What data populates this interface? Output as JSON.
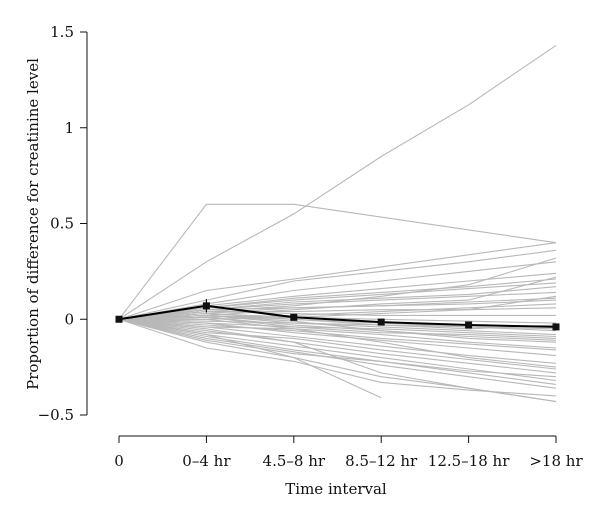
{
  "chart_data": {
    "type": "line",
    "title": "",
    "xlabel": "Time interval",
    "ylabel": "Proportion of difference for creatinine level",
    "categories": [
      "0",
      "0–4 hr",
      "4.5–8 hr",
      "8.5–12 hr",
      "12.5–18 hr",
      ">18 hr"
    ],
    "ylim": [
      -0.5,
      1.5
    ],
    "yticks": [
      -0.5,
      0,
      0.5,
      1,
      1.5
    ],
    "ytick_labels": [
      "−0.5",
      "0",
      "0.5",
      "1",
      "1.5"
    ],
    "grid": false,
    "legend": "none",
    "mean_series": {
      "values": [
        0.0,
        0.07,
        0.01,
        -0.015,
        -0.03,
        -0.04
      ],
      "error": [
        0.0,
        0.035,
        0.015,
        0.015,
        0.012,
        0.015
      ]
    },
    "individual_series": [
      {
        "values": [
          0,
          0.6,
          0.6,
          null,
          null,
          0.4
        ]
      },
      {
        "values": [
          0,
          0.3,
          0.55,
          0.85,
          1.12,
          1.43
        ]
      },
      {
        "values": [
          0,
          0.15,
          0.21,
          null,
          null,
          0.4
        ]
      },
      {
        "values": [
          0,
          0.1,
          0.2,
          0.25,
          0.3,
          0.36
        ]
      },
      {
        "values": [
          0,
          0.08,
          0.15,
          0.2,
          0.25,
          0.3
        ]
      },
      {
        "values": [
          0,
          0.07,
          0.12,
          0.16,
          0.2,
          0.24
        ]
      },
      {
        "values": [
          0,
          0.06,
          0.1,
          0.13,
          0.16,
          0.19
        ]
      },
      {
        "values": [
          0,
          0.05,
          0.08,
          0.1,
          0.12,
          0.14
        ]
      },
      {
        "values": [
          0,
          0.05,
          0.06,
          0.07,
          0.08,
          0.1
        ]
      },
      {
        "values": [
          0,
          0.04,
          0.04,
          0.05,
          0.05,
          0.06
        ]
      },
      {
        "values": [
          0,
          0.04,
          0.03,
          0.02,
          0.02,
          0.02
        ]
      },
      {
        "values": [
          0,
          0.03,
          0.01,
          0.0,
          -0.01,
          -0.02
        ]
      },
      {
        "values": [
          0,
          0.03,
          0.0,
          -0.02,
          -0.04,
          -0.05
        ]
      },
      {
        "values": [
          0,
          0.02,
          -0.02,
          -0.04,
          -0.06,
          -0.08
        ]
      },
      {
        "values": [
          0,
          0.01,
          -0.03,
          -0.06,
          -0.09,
          -0.11
        ]
      },
      {
        "values": [
          0,
          0.0,
          -0.05,
          -0.08,
          -0.12,
          -0.15
        ]
      },
      {
        "values": [
          0,
          -0.02,
          -0.07,
          -0.11,
          -0.15,
          -0.19
        ]
      },
      {
        "values": [
          0,
          -0.04,
          -0.09,
          -0.14,
          -0.19,
          -0.23
        ]
      },
      {
        "values": [
          0,
          -0.06,
          -0.12,
          -0.18,
          -0.23,
          -0.28
        ]
      },
      {
        "values": [
          0,
          -0.08,
          -0.14,
          -0.2,
          -0.26,
          -0.32
        ]
      },
      {
        "values": [
          0,
          -0.1,
          -0.17,
          -0.24,
          -0.3,
          -0.36
        ]
      },
      {
        "values": [
          0,
          -0.12,
          -0.2,
          -0.3,
          -0.36,
          -0.43
        ]
      },
      {
        "values": [
          0,
          -0.15,
          -0.22,
          -0.33,
          -0.37,
          -0.4
        ]
      },
      {
        "values": [
          0,
          -0.08,
          -0.2,
          -0.41,
          null,
          null
        ]
      },
      {
        "values": [
          0,
          -0.05,
          -0.12,
          -0.28,
          -0.36,
          -0.43
        ]
      },
      {
        "values": [
          0,
          0.02,
          0.05,
          0.08,
          0.1,
          0.22
        ]
      },
      {
        "values": [
          0,
          0.04,
          0.07,
          0.12,
          0.18,
          0.32
        ]
      },
      {
        "values": [
          0,
          -0.03,
          -0.06,
          -0.1,
          -0.13,
          -0.16
        ]
      },
      {
        "values": [
          0,
          0.01,
          0.02,
          0.04,
          0.06,
          0.08
        ]
      },
      {
        "values": [
          0,
          -0.01,
          -0.02,
          -0.03,
          -0.04,
          -0.06
        ]
      },
      {
        "values": [
          0,
          0.02,
          -0.01,
          -0.06,
          -0.1,
          -0.12
        ]
      },
      {
        "values": [
          0,
          -0.02,
          -0.04,
          -0.05,
          -0.07,
          -0.09
        ]
      },
      {
        "values": [
          0,
          0.05,
          0.09,
          0.11,
          0.13,
          0.17
        ]
      },
      {
        "values": [
          0,
          -0.07,
          -0.1,
          -0.16,
          -0.21,
          -0.26
        ]
      },
      {
        "values": [
          0,
          0.03,
          0.06,
          0.07,
          0.09,
          0.11
        ]
      },
      {
        "values": [
          0,
          -0.04,
          -0.05,
          -0.12,
          -0.2,
          -0.25
        ]
      },
      {
        "values": [
          0,
          0.06,
          0.11,
          0.14,
          0.17,
          0.21
        ]
      },
      {
        "values": [
          0,
          -0.09,
          -0.16,
          -0.22,
          -0.27,
          -0.3
        ]
      },
      {
        "values": [
          0,
          -0.11,
          -0.18,
          -0.22,
          -0.28,
          -0.34
        ]
      },
      {
        "values": [
          0,
          0.02,
          0.0,
          -0.03,
          -0.05,
          -0.03
        ]
      },
      {
        "values": [
          0,
          0.01,
          -0.04,
          -0.07,
          -0.08,
          -0.1
        ]
      },
      {
        "values": [
          0,
          0.0,
          0.01,
          0.03,
          0.05,
          0.12
        ]
      }
    ]
  }
}
